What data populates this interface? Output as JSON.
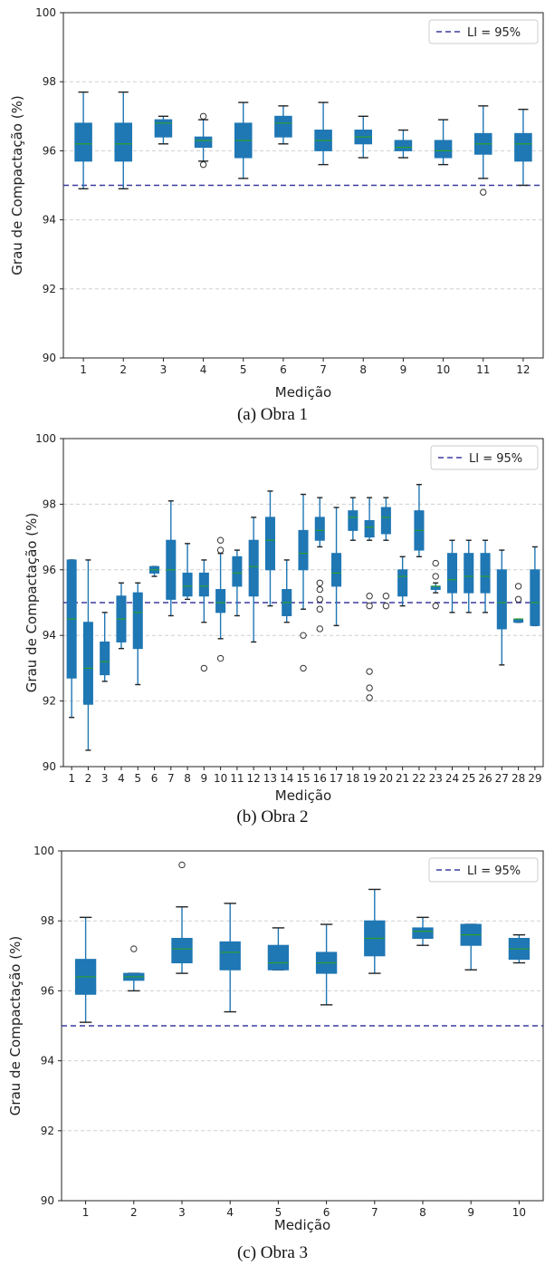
{
  "colors": {
    "box": "#1f77b4",
    "median": "#2ca02c",
    "li_line": "#3b3b9f",
    "grid": "#cfcfcf"
  },
  "chart_data": [
    {
      "type": "box",
      "caption": "(a) Obra 1",
      "xlabel": "Medição",
      "ylabel": "Grau de Compactação (%)",
      "ylim": [
        90,
        100
      ],
      "yticks": [
        90,
        92,
        94,
        96,
        98,
        100
      ],
      "grid": "horizontal dashed",
      "legend": "top-right",
      "reference_line": {
        "y": 95,
        "label": "LI = 95%"
      },
      "categories": [
        "1",
        "2",
        "3",
        "4",
        "5",
        "6",
        "7",
        "8",
        "9",
        "10",
        "11",
        "12"
      ],
      "boxes": [
        {
          "whislo": 94.9,
          "q1": 95.7,
          "med": 96.2,
          "q3": 96.8,
          "whishi": 97.7,
          "fliers": []
        },
        {
          "whislo": 94.9,
          "q1": 95.7,
          "med": 96.2,
          "q3": 96.8,
          "whishi": 97.7,
          "fliers": []
        },
        {
          "whislo": 96.2,
          "q1": 96.4,
          "med": 96.8,
          "q3": 96.9,
          "whishi": 97.0,
          "fliers": []
        },
        {
          "whislo": 95.7,
          "q1": 96.1,
          "med": 96.3,
          "q3": 96.4,
          "whishi": 96.9,
          "fliers": [
            95.6,
            97.0
          ]
        },
        {
          "whislo": 95.2,
          "q1": 95.8,
          "med": 96.3,
          "q3": 96.8,
          "whishi": 97.4,
          "fliers": []
        },
        {
          "whislo": 96.2,
          "q1": 96.4,
          "med": 96.8,
          "q3": 97.0,
          "whishi": 97.3,
          "fliers": []
        },
        {
          "whislo": 95.6,
          "q1": 96.0,
          "med": 96.3,
          "q3": 96.6,
          "whishi": 97.4,
          "fliers": []
        },
        {
          "whislo": 95.8,
          "q1": 96.2,
          "med": 96.4,
          "q3": 96.6,
          "whishi": 97.0,
          "fliers": []
        },
        {
          "whislo": 95.8,
          "q1": 96.0,
          "med": 96.1,
          "q3": 96.3,
          "whishi": 96.6,
          "fliers": []
        },
        {
          "whislo": 95.6,
          "q1": 95.8,
          "med": 96.0,
          "q3": 96.3,
          "whishi": 96.9,
          "fliers": []
        },
        {
          "whislo": 95.2,
          "q1": 95.9,
          "med": 96.2,
          "q3": 96.5,
          "whishi": 97.3,
          "fliers": [
            94.8
          ]
        },
        {
          "whislo": 95.0,
          "q1": 95.7,
          "med": 96.2,
          "q3": 96.5,
          "whishi": 97.2,
          "fliers": []
        }
      ]
    },
    {
      "type": "box",
      "caption": "(b) Obra 2",
      "xlabel": "Medição",
      "ylabel": "Grau de Compactação (%)",
      "ylim": [
        90,
        100
      ],
      "yticks": [
        90,
        92,
        94,
        96,
        98,
        100
      ],
      "grid": "horizontal dashed",
      "legend": "top-right",
      "reference_line": {
        "y": 95,
        "label": "LI = 95%"
      },
      "categories": [
        "1",
        "2",
        "3",
        "4",
        "5",
        "6",
        "7",
        "8",
        "9",
        "10",
        "11",
        "12",
        "13",
        "14",
        "15",
        "16",
        "17",
        "18",
        "19",
        "20",
        "21",
        "22",
        "23",
        "24",
        "25",
        "26",
        "27",
        "28",
        "29"
      ],
      "boxes": [
        {
          "whislo": 91.5,
          "q1": 92.7,
          "med": 94.5,
          "q3": 96.3,
          "whishi": 96.3,
          "fliers": []
        },
        {
          "whislo": 90.5,
          "q1": 91.9,
          "med": 93.0,
          "q3": 94.4,
          "whishi": 96.3,
          "fliers": []
        },
        {
          "whislo": 92.6,
          "q1": 92.8,
          "med": 93.2,
          "q3": 93.8,
          "whishi": 94.7,
          "fliers": []
        },
        {
          "whislo": 93.6,
          "q1": 93.8,
          "med": 94.5,
          "q3": 95.2,
          "whishi": 95.6,
          "fliers": []
        },
        {
          "whislo": 92.5,
          "q1": 93.6,
          "med": 94.7,
          "q3": 95.3,
          "whishi": 95.6,
          "fliers": []
        },
        {
          "whislo": 95.8,
          "q1": 95.9,
          "med": 96.0,
          "q3": 96.1,
          "whishi": 96.1,
          "fliers": []
        },
        {
          "whislo": 94.6,
          "q1": 95.1,
          "med": 96.0,
          "q3": 96.9,
          "whishi": 98.1,
          "fliers": []
        },
        {
          "whislo": 95.1,
          "q1": 95.2,
          "med": 95.5,
          "q3": 95.9,
          "whishi": 96.8,
          "fliers": []
        },
        {
          "whislo": 94.4,
          "q1": 95.2,
          "med": 95.5,
          "q3": 95.9,
          "whishi": 96.3,
          "fliers": [
            93.0
          ]
        },
        {
          "whislo": 93.9,
          "q1": 94.7,
          "med": 95.0,
          "q3": 95.4,
          "whishi": 96.5,
          "fliers": [
            93.3,
            96.6,
            96.9
          ]
        },
        {
          "whislo": 94.6,
          "q1": 95.5,
          "med": 95.9,
          "q3": 96.4,
          "whishi": 96.6,
          "fliers": []
        },
        {
          "whislo": 93.8,
          "q1": 95.2,
          "med": 96.1,
          "q3": 96.9,
          "whishi": 97.6,
          "fliers": []
        },
        {
          "whislo": 94.9,
          "q1": 96.0,
          "med": 96.9,
          "q3": 97.6,
          "whishi": 98.4,
          "fliers": []
        },
        {
          "whislo": 94.4,
          "q1": 94.6,
          "med": 95.0,
          "q3": 95.4,
          "whishi": 96.3,
          "fliers": []
        },
        {
          "whislo": 94.8,
          "q1": 96.0,
          "med": 96.5,
          "q3": 97.2,
          "whishi": 98.3,
          "fliers": [
            93.0,
            94.0
          ]
        },
        {
          "whislo": 96.7,
          "q1": 96.9,
          "med": 97.2,
          "q3": 97.6,
          "whishi": 98.2,
          "fliers": [
            94.2,
            94.8,
            95.1,
            95.4,
            95.6
          ]
        },
        {
          "whislo": 94.3,
          "q1": 95.5,
          "med": 95.9,
          "q3": 96.5,
          "whishi": 97.9,
          "fliers": []
        },
        {
          "whislo": 96.9,
          "q1": 97.2,
          "med": 97.6,
          "q3": 97.8,
          "whishi": 98.2,
          "fliers": []
        },
        {
          "whislo": 96.9,
          "q1": 97.0,
          "med": 97.3,
          "q3": 97.5,
          "whishi": 98.2,
          "fliers": [
            92.1,
            92.4,
            92.9,
            94.9,
            95.2
          ]
        },
        {
          "whislo": 96.9,
          "q1": 97.1,
          "med": 97.6,
          "q3": 97.9,
          "whishi": 98.2,
          "fliers": [
            94.9,
            95.2
          ]
        },
        {
          "whislo": 94.9,
          "q1": 95.2,
          "med": 95.8,
          "q3": 96.0,
          "whishi": 96.4,
          "fliers": []
        },
        {
          "whislo": 96.4,
          "q1": 96.6,
          "med": 97.2,
          "q3": 97.8,
          "whishi": 98.6,
          "fliers": []
        },
        {
          "whislo": 95.3,
          "q1": 95.4,
          "med": 95.5,
          "q3": 95.5,
          "whishi": 95.6,
          "fliers": [
            94.9,
            95.8,
            96.2
          ]
        },
        {
          "whislo": 94.7,
          "q1": 95.3,
          "med": 95.7,
          "q3": 96.5,
          "whishi": 96.9,
          "fliers": []
        },
        {
          "whislo": 94.7,
          "q1": 95.3,
          "med": 95.8,
          "q3": 96.5,
          "whishi": 96.9,
          "fliers": []
        },
        {
          "whislo": 94.7,
          "q1": 95.3,
          "med": 95.8,
          "q3": 96.5,
          "whishi": 96.9,
          "fliers": []
        },
        {
          "whislo": 93.1,
          "q1": 94.2,
          "med": 95.0,
          "q3": 96.0,
          "whishi": 96.6,
          "fliers": []
        },
        {
          "whislo": 94.4,
          "q1": 94.4,
          "med": 94.5,
          "q3": 94.5,
          "whishi": 94.5,
          "fliers": [
            95.1,
            95.5
          ]
        },
        {
          "whislo": 94.3,
          "q1": 94.3,
          "med": 95.0,
          "q3": 96.0,
          "whishi": 96.7,
          "fliers": []
        }
      ]
    },
    {
      "type": "box",
      "caption": "(c) Obra 3",
      "xlabel": "Medição",
      "ylabel": "Grau de Compactação (%)",
      "ylim": [
        90,
        100
      ],
      "yticks": [
        90,
        92,
        94,
        96,
        98,
        100
      ],
      "grid": "horizontal dashed",
      "legend": "top-right",
      "reference_line": {
        "y": 95,
        "label": "LI = 95%"
      },
      "categories": [
        "1",
        "2",
        "3",
        "4",
        "5",
        "6",
        "7",
        "8",
        "9",
        "10"
      ],
      "boxes": [
        {
          "whislo": 95.1,
          "q1": 95.9,
          "med": 96.4,
          "q3": 96.9,
          "whishi": 98.1,
          "fliers": []
        },
        {
          "whislo": 96.0,
          "q1": 96.3,
          "med": 96.4,
          "q3": 96.5,
          "whishi": 96.5,
          "fliers": [
            97.2
          ]
        },
        {
          "whislo": 96.5,
          "q1": 96.8,
          "med": 97.2,
          "q3": 97.5,
          "whishi": 98.4,
          "fliers": [
            99.6
          ]
        },
        {
          "whislo": 95.4,
          "q1": 96.6,
          "med": 97.1,
          "q3": 97.4,
          "whishi": 98.5,
          "fliers": []
        },
        {
          "whislo": 96.6,
          "q1": 96.6,
          "med": 96.8,
          "q3": 97.3,
          "whishi": 97.8,
          "fliers": []
        },
        {
          "whislo": 95.6,
          "q1": 96.5,
          "med": 96.8,
          "q3": 97.1,
          "whishi": 97.9,
          "fliers": []
        },
        {
          "whislo": 96.5,
          "q1": 97.0,
          "med": 97.5,
          "q3": 98.0,
          "whishi": 98.9,
          "fliers": []
        },
        {
          "whislo": 97.3,
          "q1": 97.5,
          "med": 97.7,
          "q3": 97.8,
          "whishi": 98.1,
          "fliers": []
        },
        {
          "whislo": 96.6,
          "q1": 97.3,
          "med": 97.6,
          "q3": 97.9,
          "whishi": 97.9,
          "fliers": []
        },
        {
          "whislo": 96.8,
          "q1": 96.9,
          "med": 97.2,
          "q3": 97.5,
          "whishi": 97.6,
          "fliers": []
        }
      ]
    }
  ]
}
